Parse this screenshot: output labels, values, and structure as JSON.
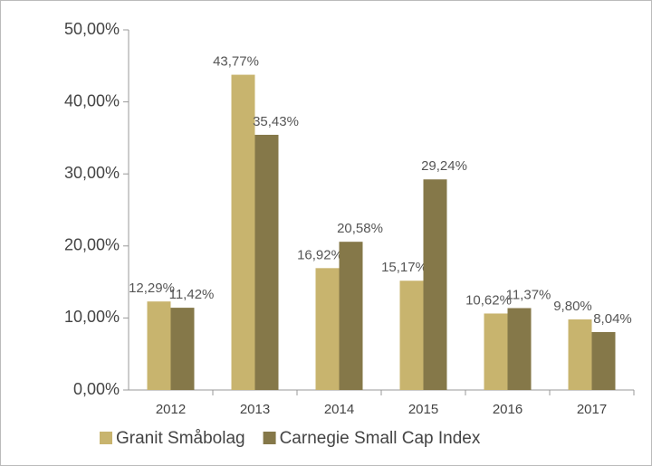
{
  "chart_data": {
    "type": "bar",
    "categories": [
      "2012",
      "2013",
      "2014",
      "2015",
      "2016",
      "2017"
    ],
    "series": [
      {
        "name": "Granit Småbolag",
        "color": "#c8b46e",
        "values": [
          12.29,
          43.77,
          16.92,
          15.17,
          10.62,
          9.8
        ],
        "value_labels": [
          "12,29%",
          "43,77%",
          "16,92%",
          "15,17%",
          "10,62%",
          "9,80%"
        ]
      },
      {
        "name": "Carnegie Small Cap Index",
        "color": "#857849",
        "values": [
          11.42,
          35.43,
          20.58,
          29.24,
          11.37,
          8.04
        ],
        "value_labels": [
          "11,42%",
          "35,43%",
          "20,58%",
          "29,24%",
          "11,37%",
          "8,04%"
        ]
      }
    ],
    "ylim": [
      0,
      50
    ],
    "yticks": [
      {
        "value": 0,
        "label": "0,00%"
      },
      {
        "value": 10,
        "label": "10,00%"
      },
      {
        "value": 20,
        "label": "20,00%"
      },
      {
        "value": 30,
        "label": "30,00%"
      },
      {
        "value": 40,
        "label": "40,00%"
      },
      {
        "value": 50,
        "label": "50,00%"
      }
    ],
    "legend": "bottom"
  }
}
